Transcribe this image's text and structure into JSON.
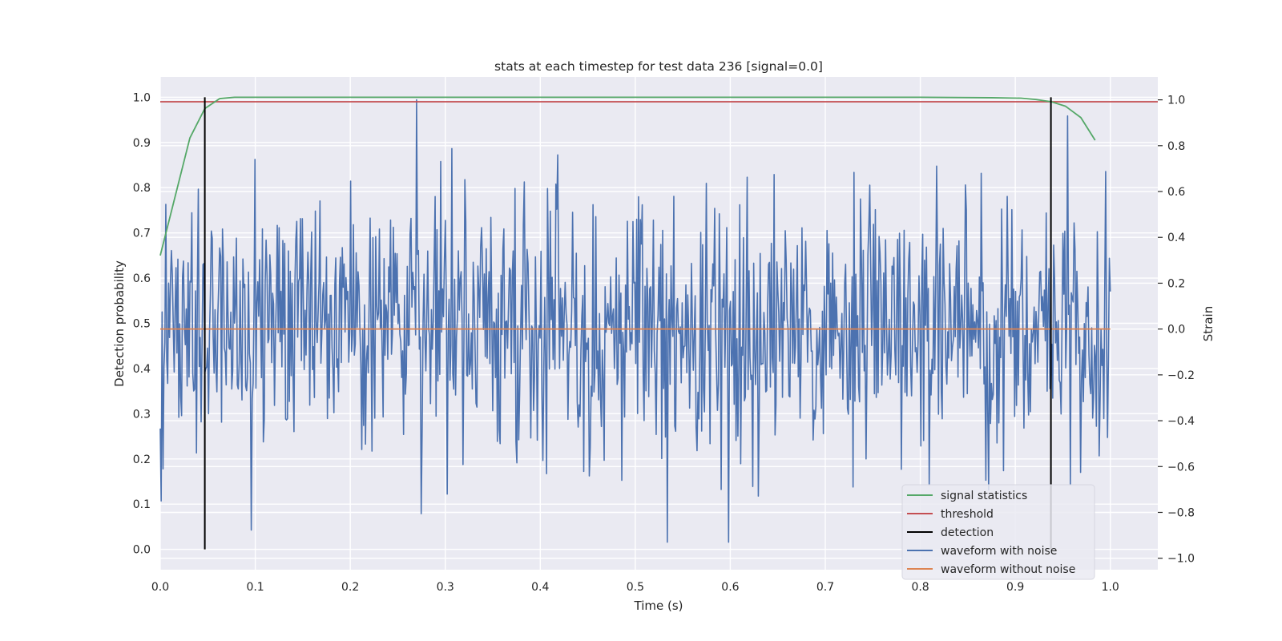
{
  "chart_data": {
    "type": "line",
    "title": "stats at each timestep for test data 236 [signal=0.0]",
    "xlabel": "Time (s)",
    "ylabel_left": "Detection probability",
    "ylabel_right": "Strain",
    "xlim": [
      0.0,
      1.05
    ],
    "ylim_left": [
      -0.045,
      1.045
    ],
    "ylim_right": [
      -1.05,
      1.1
    ],
    "x_ticks": [
      "0.0",
      "0.1",
      "0.2",
      "0.3",
      "0.4",
      "0.5",
      "0.6",
      "0.7",
      "0.8",
      "0.9",
      "1.0"
    ],
    "y_ticks_left": [
      "0.0",
      "0.1",
      "0.2",
      "0.3",
      "0.4",
      "0.5",
      "0.6",
      "0.7",
      "0.8",
      "0.9",
      "1.0"
    ],
    "y_ticks_right": [
      "−1.0",
      "−0.8",
      "−0.6",
      "−0.4",
      "−0.2",
      "0.0",
      "0.2",
      "0.4",
      "0.6",
      "0.8",
      "1.0"
    ],
    "grid": true,
    "legend_position": "bottom-right",
    "colors": {
      "signal_statistics": "#55a868",
      "threshold": "#c44e52",
      "detection": "#000000",
      "waveform_with_noise": "#4c72b0",
      "waveform_without_noise": "#dd8452",
      "axes_background": "#eaeaf2",
      "grid": "#ffffff"
    },
    "series": [
      {
        "name": "signal statistics",
        "axis": "left",
        "x": [
          0.0,
          0.0156,
          0.0312,
          0.0469,
          0.0625,
          0.0781,
          0.1,
          0.2,
          0.3,
          0.4,
          0.5,
          0.6,
          0.7,
          0.8,
          0.875,
          0.906,
          0.922,
          0.938,
          0.953,
          0.969,
          0.984
        ],
        "y": [
          0.65,
          0.78,
          0.91,
          0.975,
          0.997,
          1.0,
          1.0,
          1.0,
          1.0,
          1.0,
          1.0,
          1.0,
          1.0,
          1.0,
          0.999,
          0.998,
          0.995,
          0.99,
          0.98,
          0.955,
          0.905
        ]
      },
      {
        "name": "threshold",
        "axis": "left",
        "x": [
          0.0,
          1.05
        ],
        "y": [
          0.99,
          0.99
        ]
      },
      {
        "name": "detection",
        "axis": "left",
        "segments": [
          {
            "x": 0.0469,
            "y": [
              0.0,
              1.0
            ]
          },
          {
            "x": 0.9375,
            "y": [
              0.0,
              1.0
            ]
          }
        ]
      },
      {
        "name": "waveform with noise",
        "axis": "right",
        "x_start": 0.0,
        "x_end": 1.0,
        "n_points": 1024,
        "y_min": -0.93,
        "y_max": 1.0,
        "notable_points": [
          {
            "x": 0.001,
            "y": -0.75
          },
          {
            "x": 0.1,
            "y": 0.74
          },
          {
            "x": 0.27,
            "y": 1.0
          },
          {
            "x": 0.302,
            "y": -0.72
          },
          {
            "x": 0.418,
            "y": 0.76
          },
          {
            "x": 0.486,
            "y": -0.66
          },
          {
            "x": 0.534,
            "y": -0.93
          },
          {
            "x": 0.59,
            "y": -0.7
          },
          {
            "x": 0.955,
            "y": 0.93
          },
          {
            "x": 0.958,
            "y": -0.68
          }
        ]
      },
      {
        "name": "waveform without noise",
        "axis": "right",
        "x": [
          0.0,
          1.0
        ],
        "y": [
          0.0,
          0.0
        ]
      }
    ]
  }
}
